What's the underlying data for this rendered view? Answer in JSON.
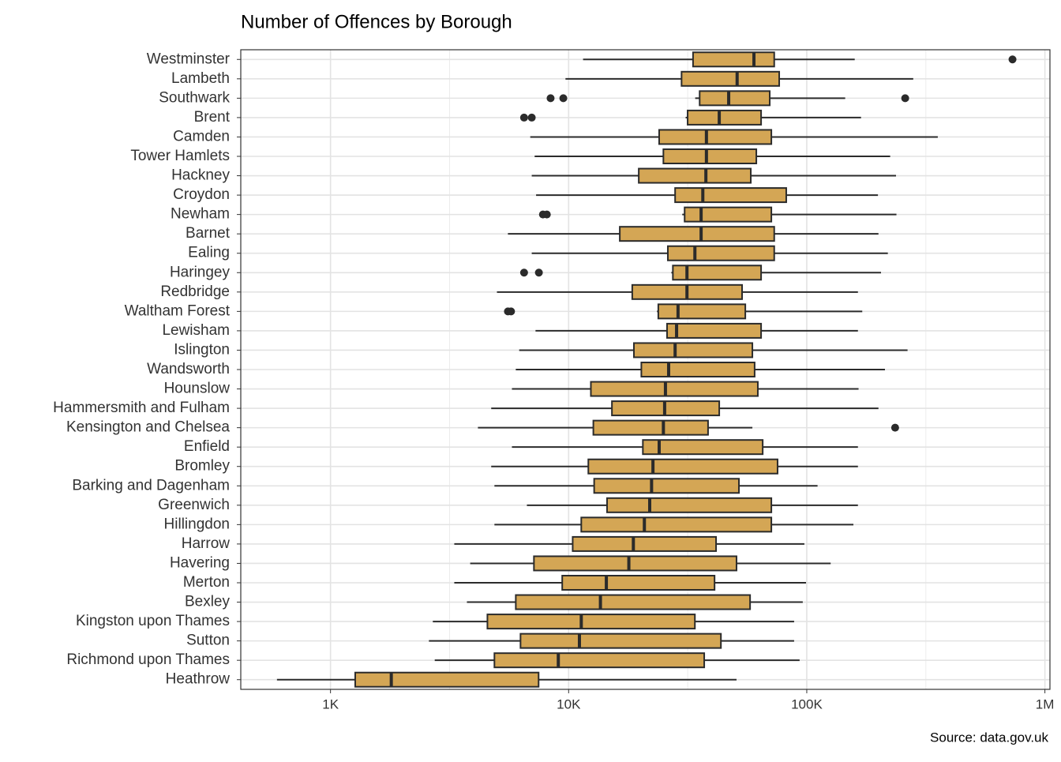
{
  "chart_data": {
    "type": "boxplot",
    "title": "Number of Offences by Borough",
    "caption": "Source: data.gov.uk",
    "x_scale": "log",
    "xlim": [
      420,
      1050000
    ],
    "xticks": [
      {
        "value": 1000,
        "label": "1K"
      },
      {
        "value": 10000,
        "label": "10K"
      },
      {
        "value": 100000,
        "label": "100K"
      },
      {
        "value": 1000000,
        "label": "1M"
      }
    ],
    "grid": true,
    "fill": "#d4a655",
    "stroke": "#2b2b2b",
    "categories": [
      "Westminster",
      "Lambeth",
      "Southwark",
      "Brent",
      "Camden",
      "Tower Hamlets",
      "Hackney",
      "Croydon",
      "Newham",
      "Barnet",
      "Ealing",
      "Haringey",
      "Redbridge",
      "Waltham Forest",
      "Lewisham",
      "Islington",
      "Wandsworth",
      "Hounslow",
      "Hammersmith and Fulham",
      "Kensington and Chelsea",
      "Enfield",
      "Bromley",
      "Barking and Dagenham",
      "Greenwich",
      "Hillingdon",
      "Harrow",
      "Havering",
      "Merton",
      "Bexley",
      "Kingston upon Thames",
      "Sutton",
      "Richmond upon Thames",
      "Heathrow"
    ],
    "boxes": [
      {
        "low": 11500,
        "q1": 33300,
        "median": 60000,
        "q3": 73000,
        "high": 159000,
        "outliers": [
          731000
        ]
      },
      {
        "low": 9700,
        "q1": 29800,
        "median": 51000,
        "q3": 76600,
        "high": 280000
      },
      {
        "low": 34000,
        "q1": 35500,
        "median": 47000,
        "q3": 69900,
        "high": 145000,
        "outliers": [
          8400,
          9500,
          259000
        ]
      },
      {
        "low": 31000,
        "q1": 31600,
        "median": 42900,
        "q3": 64300,
        "high": 169000,
        "outliers": [
          6500,
          7000
        ]
      },
      {
        "low": 6900,
        "q1": 24000,
        "median": 37900,
        "q3": 71000,
        "high": 355000
      },
      {
        "low": 7200,
        "q1": 25000,
        "median": 37900,
        "q3": 61400,
        "high": 224000
      },
      {
        "low": 7000,
        "q1": 19700,
        "median": 37700,
        "q3": 58200,
        "high": 237000
      },
      {
        "low": 7300,
        "q1": 28000,
        "median": 36600,
        "q3": 82000,
        "high": 199000
      },
      {
        "low": 30000,
        "q1": 30700,
        "median": 36000,
        "q3": 71000,
        "high": 238000,
        "outliers": [
          7800,
          8100
        ]
      },
      {
        "low": 5560,
        "q1": 16400,
        "median": 36000,
        "q3": 73000,
        "high": 200000
      },
      {
        "low": 7000,
        "q1": 26100,
        "median": 33900,
        "q3": 73000,
        "high": 219000
      },
      {
        "low": 27000,
        "q1": 27400,
        "median": 31400,
        "q3": 64300,
        "high": 205000,
        "outliers": [
          6500,
          7500
        ]
      },
      {
        "low": 5000,
        "q1": 18500,
        "median": 31400,
        "q3": 53500,
        "high": 164000
      },
      {
        "low": 23500,
        "q1": 23800,
        "median": 28800,
        "q3": 55200,
        "high": 171000,
        "outliers": [
          5560,
          5730
        ]
      },
      {
        "low": 7260,
        "q1": 25900,
        "median": 28400,
        "q3": 64300,
        "high": 164000
      },
      {
        "low": 6200,
        "q1": 18800,
        "median": 28000,
        "q3": 59100,
        "high": 265000
      },
      {
        "low": 6000,
        "q1": 20200,
        "median": 26300,
        "q3": 60400,
        "high": 213000
      },
      {
        "low": 5780,
        "q1": 12400,
        "median": 25500,
        "q3": 62300,
        "high": 165000
      },
      {
        "low": 4730,
        "q1": 15200,
        "median": 25300,
        "q3": 42900,
        "high": 200000
      },
      {
        "low": 4160,
        "q1": 12700,
        "median": 25000,
        "q3": 38500,
        "high": 59100,
        "outliers": [
          235000
        ]
      },
      {
        "low": 5780,
        "q1": 20500,
        "median": 24000,
        "q3": 65300,
        "high": 164000
      },
      {
        "low": 4730,
        "q1": 12100,
        "median": 22600,
        "q3": 75400,
        "high": 164000
      },
      {
        "low": 4880,
        "q1": 12800,
        "median": 22300,
        "q3": 51900,
        "high": 111000
      },
      {
        "low": 6680,
        "q1": 14500,
        "median": 21900,
        "q3": 71000,
        "high": 164000
      },
      {
        "low": 4880,
        "q1": 11300,
        "median": 20800,
        "q3": 71000,
        "high": 157000
      },
      {
        "low": 3310,
        "q1": 10400,
        "median": 18700,
        "q3": 41600,
        "high": 97700
      },
      {
        "low": 3860,
        "q1": 7150,
        "median": 17900,
        "q3": 50700,
        "high": 126000
      },
      {
        "low": 3310,
        "q1": 9400,
        "median": 14400,
        "q3": 41000,
        "high": 99300
      },
      {
        "low": 3740,
        "q1": 6000,
        "median": 13600,
        "q3": 57800,
        "high": 96200
      },
      {
        "low": 2690,
        "q1": 4560,
        "median": 11300,
        "q3": 33900,
        "high": 88500
      },
      {
        "low": 2590,
        "q1": 6280,
        "median": 11100,
        "q3": 43600,
        "high": 88500
      },
      {
        "low": 2740,
        "q1": 4880,
        "median": 9050,
        "q3": 37100,
        "high": 93300
      },
      {
        "low": 596,
        "q1": 1270,
        "median": 1800,
        "q3": 7480,
        "high": 50700
      }
    ]
  }
}
